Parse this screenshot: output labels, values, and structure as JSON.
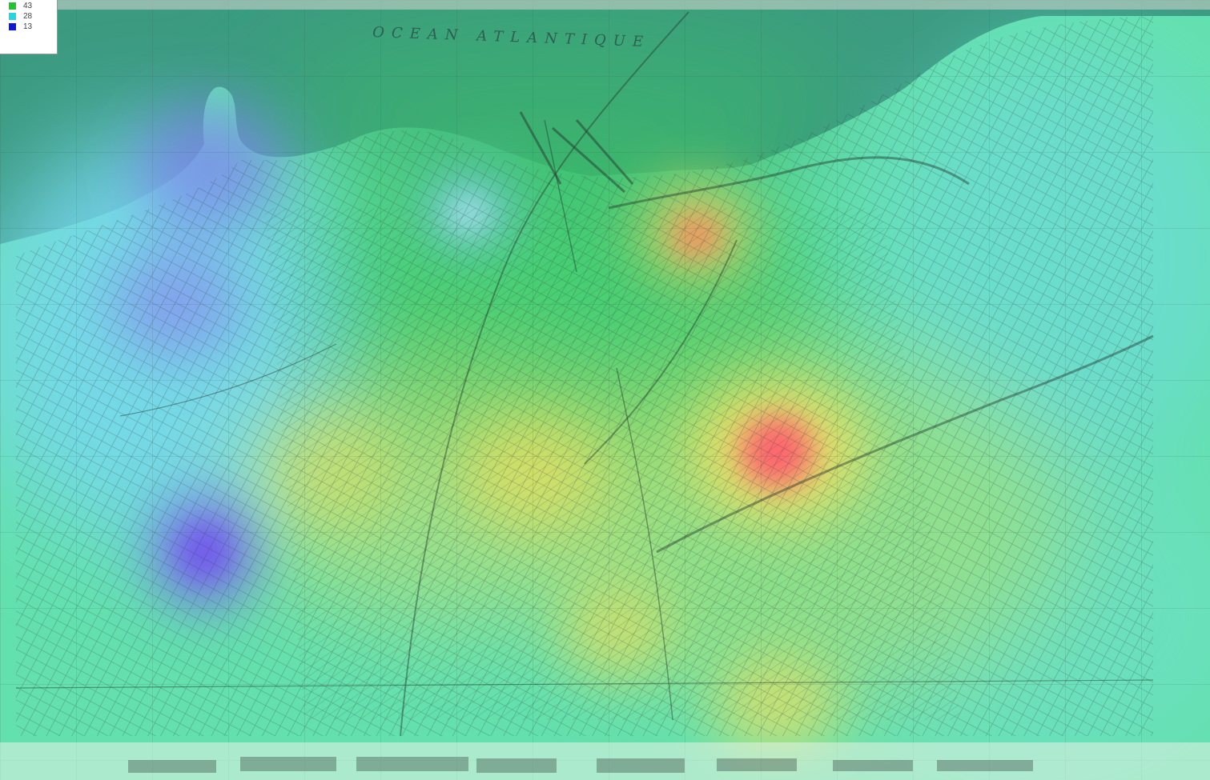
{
  "legend": {
    "items": [
      {
        "label": "43",
        "color": "#22c430"
      },
      {
        "label": "28",
        "color": "#22d8e0"
      },
      {
        "label": "13",
        "color": "#1018d8"
      }
    ]
  },
  "map": {
    "sea_label": "OCEAN ATLANTIQUE",
    "colors": {
      "sea": "#3f9a86",
      "land": "#5fe0a8",
      "hotspot_red": "#ff5a70",
      "hotspot_yellow": "#e6e060",
      "coldspot_blue": "#7a6cf0"
    }
  }
}
